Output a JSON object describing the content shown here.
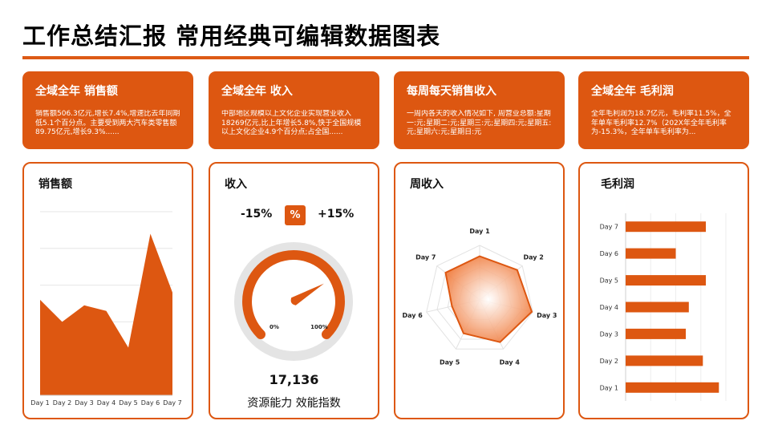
{
  "title": "工作总结汇报 常用经典可编辑数据图表",
  "colors": {
    "accent": "#dd5711"
  },
  "cards": [
    {
      "title": "全域全年  销售额",
      "body": "销售额506.3亿元,增长7.4%,增速比去年同期低5.1个百分点。主要受到两大汽车类零售额89.75亿元,增长9.3%......"
    },
    {
      "title": "全域全年  收入",
      "body": "中部地区规模以上文化企业实现营业收入18269亿元,比上年增长5.8%,快于全国规模以上文化企业4.9个百分点;占全国......"
    },
    {
      "title": "每周每天销售收入",
      "body": "一周内各天的收入情况如下, 周营业总额:星期一:元;星期二:元;星期三:元;星期四:元;星期五:元;星期六:元;星期日:元"
    },
    {
      "title": "全域全年 毛利润",
      "body": "全年毛利润为18.7亿元，毛利率11.5%，全年单车毛利率12.7%（202X年全年毛利率为-15.3%，全年单车毛利率为..."
    }
  ],
  "gauge": {
    "title": "收入",
    "min_label": "-15%",
    "max_label": "+15%",
    "unit_label": "%",
    "scale_min_label": "0%",
    "scale_max_label": "100%",
    "value_fraction": 0.72,
    "value": "17,136",
    "caption": "资源能力 效能指数"
  },
  "chart_data": [
    {
      "type": "area",
      "title": "销售额",
      "categories": [
        "Day 1",
        "Day 2",
        "Day 3",
        "Day 4",
        "Day 5",
        "Day 6",
        "Day 7"
      ],
      "values": [
        52,
        40,
        49,
        46,
        26,
        88,
        56
      ],
      "ylim": [
        0,
        100
      ],
      "grid": true
    },
    {
      "type": "radar",
      "title": "周收入",
      "categories": [
        "Day 1",
        "Day 2",
        "Day 3",
        "Day 4",
        "Day 5",
        "Day 6",
        "Day 7"
      ],
      "values": [
        80,
        88,
        98,
        86,
        68,
        52,
        80
      ],
      "rmax": 100,
      "grid": true
    },
    {
      "type": "bar",
      "orientation": "horizontal",
      "title": "毛利润",
      "categories": [
        "Day 1",
        "Day 2",
        "Day 3",
        "Day 4",
        "Day 5",
        "Day 6",
        "Day 7"
      ],
      "values": [
        93,
        77,
        60,
        63,
        80,
        50,
        80
      ],
      "xlim": [
        0,
        100
      ],
      "grid": true
    }
  ]
}
